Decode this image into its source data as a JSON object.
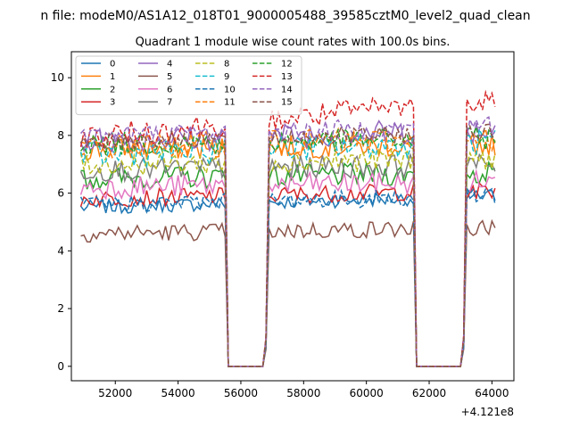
{
  "chart_data": {
    "type": "line",
    "suptitle": "n file: modeM0/AS1A12_018T01_9000005488_39585cztM0_level2_quad_clean",
    "title": "Quadrant 1 module wise count rates with 100.0s bins.",
    "xlabel": "",
    "ylabel": "",
    "x_offset_label": "+4.121e8",
    "xlim": [
      50600,
      64700
    ],
    "ylim": [
      -0.5,
      10.9
    ],
    "xticks": [
      52000,
      54000,
      56000,
      58000,
      60000,
      62000,
      64000
    ],
    "xtick_labels": [
      "52000",
      "54000",
      "56000",
      "58000",
      "60000",
      "62000",
      "64000"
    ],
    "yticks": [
      0,
      2,
      4,
      6,
      8,
      10
    ],
    "ytick_labels": [
      "0",
      "2",
      "4",
      "6",
      "8",
      "10"
    ],
    "grid": false,
    "legend_position": "top-left",
    "legend_columns": 4,
    "segments": [
      {
        "x_start": 50900,
        "x_end": 55500,
        "role": "on"
      },
      {
        "x_start": 55500,
        "x_end": 55600,
        "role": "fall"
      },
      {
        "x_start": 55700,
        "x_end": 56700,
        "role": "off"
      },
      {
        "x_start": 56800,
        "x_end": 56900,
        "role": "rise"
      },
      {
        "x_start": 56900,
        "x_end": 61500,
        "role": "on"
      },
      {
        "x_start": 61500,
        "x_end": 61600,
        "role": "fall"
      },
      {
        "x_start": 61700,
        "x_end": 63000,
        "role": "off"
      },
      {
        "x_start": 63100,
        "x_end": 63200,
        "role": "rise"
      },
      {
        "x_start": 63200,
        "x_end": 64100,
        "role": "on"
      }
    ],
    "series": [
      {
        "name": "0",
        "color": "#1f77b4",
        "dash": "solid",
        "level": 5.5,
        "noise": 0.25,
        "trend": 0.4
      },
      {
        "name": "1",
        "color": "#ff7f0e",
        "dash": "solid",
        "level": 7.5,
        "noise": 0.4,
        "trend": 0.2
      },
      {
        "name": "2",
        "color": "#2ca02c",
        "dash": "solid",
        "level": 6.5,
        "noise": 0.4,
        "trend": 0.2
      },
      {
        "name": "3",
        "color": "#d62728",
        "dash": "solid",
        "level": 5.8,
        "noise": 0.3,
        "trend": 0.3
      },
      {
        "name": "4",
        "color": "#9467bd",
        "dash": "solid",
        "level": 7.8,
        "noise": 0.45,
        "trend": 0.4
      },
      {
        "name": "5",
        "color": "#8c564b",
        "dash": "solid",
        "level": 4.6,
        "noise": 0.3,
        "trend": 0.2
      },
      {
        "name": "6",
        "color": "#e377c2",
        "dash": "solid",
        "level": 6.2,
        "noise": 0.4,
        "trend": 0.2
      },
      {
        "name": "7",
        "color": "#7f7f7f",
        "dash": "solid",
        "level": 6.8,
        "noise": 0.4,
        "trend": 0.2
      },
      {
        "name": "8",
        "color": "#bcbd22",
        "dash": "dashed",
        "level": 7.0,
        "noise": 0.4,
        "trend": 0.2
      },
      {
        "name": "9",
        "color": "#17becf",
        "dash": "dashed",
        "level": 7.3,
        "noise": 0.45,
        "trend": 0.5
      },
      {
        "name": "10",
        "color": "#1f77b4",
        "dash": "dashed",
        "level": 5.6,
        "noise": 0.3,
        "trend": 0.3
      },
      {
        "name": "11",
        "color": "#ff7f0e",
        "dash": "dashed",
        "level": 7.6,
        "noise": 0.45,
        "trend": 0.3
      },
      {
        "name": "12",
        "color": "#2ca02c",
        "dash": "dashed",
        "level": 7.7,
        "noise": 0.4,
        "trend": 0.2
      },
      {
        "name": "13",
        "color": "#d62728",
        "dash": "dashed",
        "level": 7.9,
        "noise": 0.45,
        "trend": 1.4
      },
      {
        "name": "14",
        "color": "#9467bd",
        "dash": "dashed",
        "level": 8.0,
        "noise": 0.35,
        "trend": 0.3
      },
      {
        "name": "15",
        "color": "#8c564b",
        "dash": "dashed",
        "level": 7.8,
        "noise": 0.3,
        "trend": 0.3
      }
    ]
  }
}
